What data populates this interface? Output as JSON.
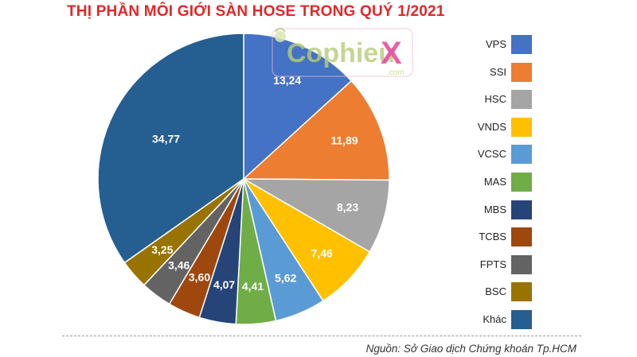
{
  "title": "THỊ PHẦN MÔI GIỚI SÀN HOSE TRONG QUÝ 1/2021",
  "source": "Nguồn: Sở Giao dịch Chứng khoán Tp.HCM",
  "watermark": {
    "text_main": "CophieuX",
    "text_sub": ".com"
  },
  "chart_data": {
    "type": "pie",
    "title": "THỊ PHẦN MÔI GIỚI SÀN HOSE TRONG QUÝ 1/2021",
    "categories": [
      "VPS",
      "SSI",
      "HSC",
      "VNDS",
      "VCSC",
      "MAS",
      "MBS",
      "TCBS",
      "FPTS",
      "BSC",
      "Khác"
    ],
    "values": [
      13.24,
      11.89,
      8.23,
      7.46,
      5.62,
      4.41,
      4.07,
      3.6,
      3.46,
      3.25,
      34.77
    ],
    "labels": [
      "13,24",
      "11,89",
      "8,23",
      "7,46",
      "5,62",
      "4,41",
      "4,07",
      "3,60",
      "3,46",
      "3,25",
      "34,77"
    ],
    "colors": [
      "#4472c4",
      "#ed7d31",
      "#a5a5a5",
      "#ffc000",
      "#5b9bd5",
      "#70ad47",
      "#264478",
      "#9e480e",
      "#636363",
      "#997300",
      "#255e91"
    ],
    "legend_position": "right"
  }
}
